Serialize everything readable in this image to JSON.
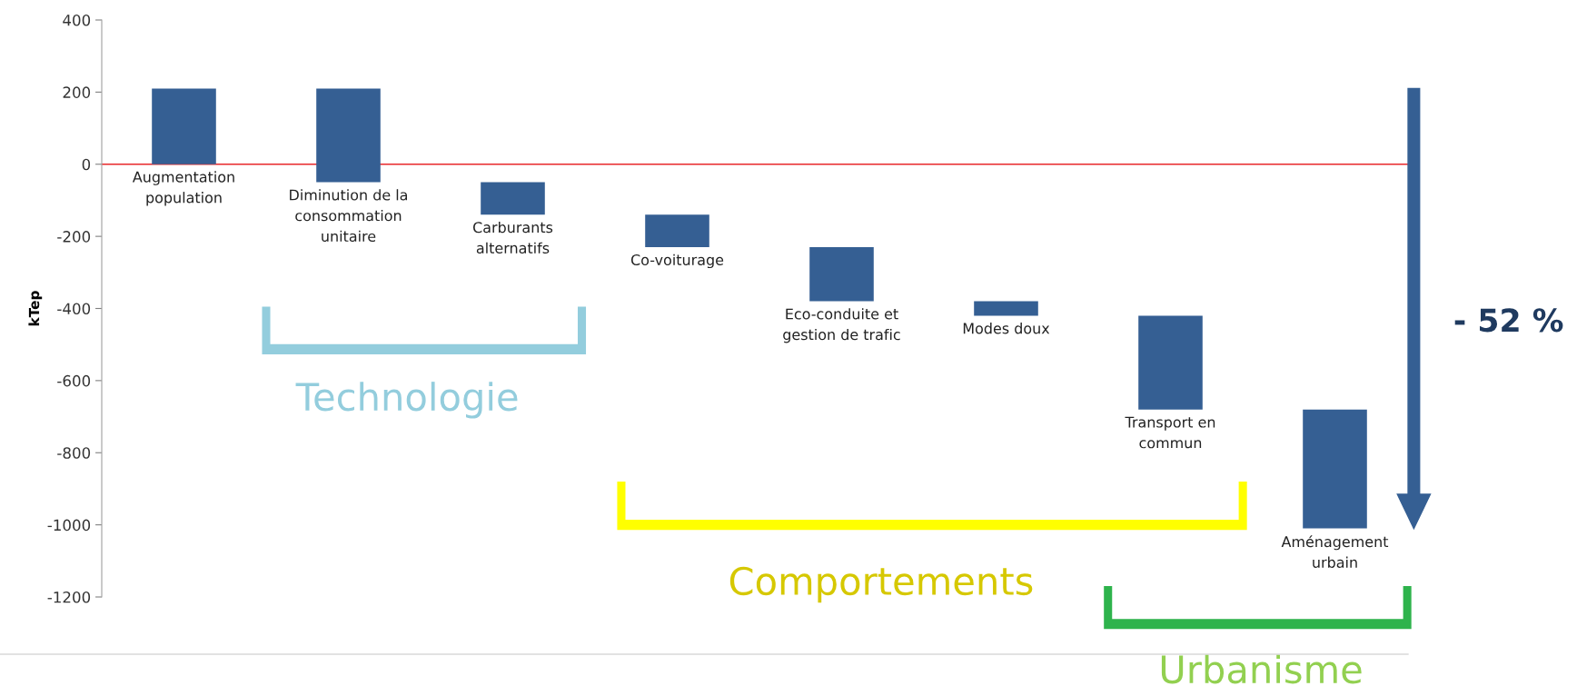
{
  "chart_data": {
    "type": "bar",
    "ylabel": "kTep",
    "categories": [
      "Augmentation\npopulation",
      "Diminution de la\nconsommation\nunitaire",
      "Carburants\nalternatifs",
      "Co-voiturage",
      "Eco-conduite et\ngestion de trafic",
      "Modes doux",
      "Transport en\ncommun",
      "Aménagement\nurbain"
    ],
    "base": [
      0,
      210,
      -50,
      -140,
      -230,
      -380,
      -420,
      -680
    ],
    "values": [
      210,
      -260,
      -90,
      -90,
      -150,
      -40,
      -260,
      -330
    ],
    "color": "#355f93",
    "ylim": [
      -1200,
      400
    ],
    "yticks": [
      -1200,
      -1000,
      -800,
      -600,
      -400,
      -200,
      0,
      200,
      400
    ],
    "ref_lines": [
      {
        "axis": "y",
        "value": 0,
        "color": "#e8282b"
      }
    ],
    "grid": false,
    "legend": false,
    "annotations": [
      "Technologie",
      "Comportements",
      "Urbanisme",
      "- 52 %"
    ]
  }
}
